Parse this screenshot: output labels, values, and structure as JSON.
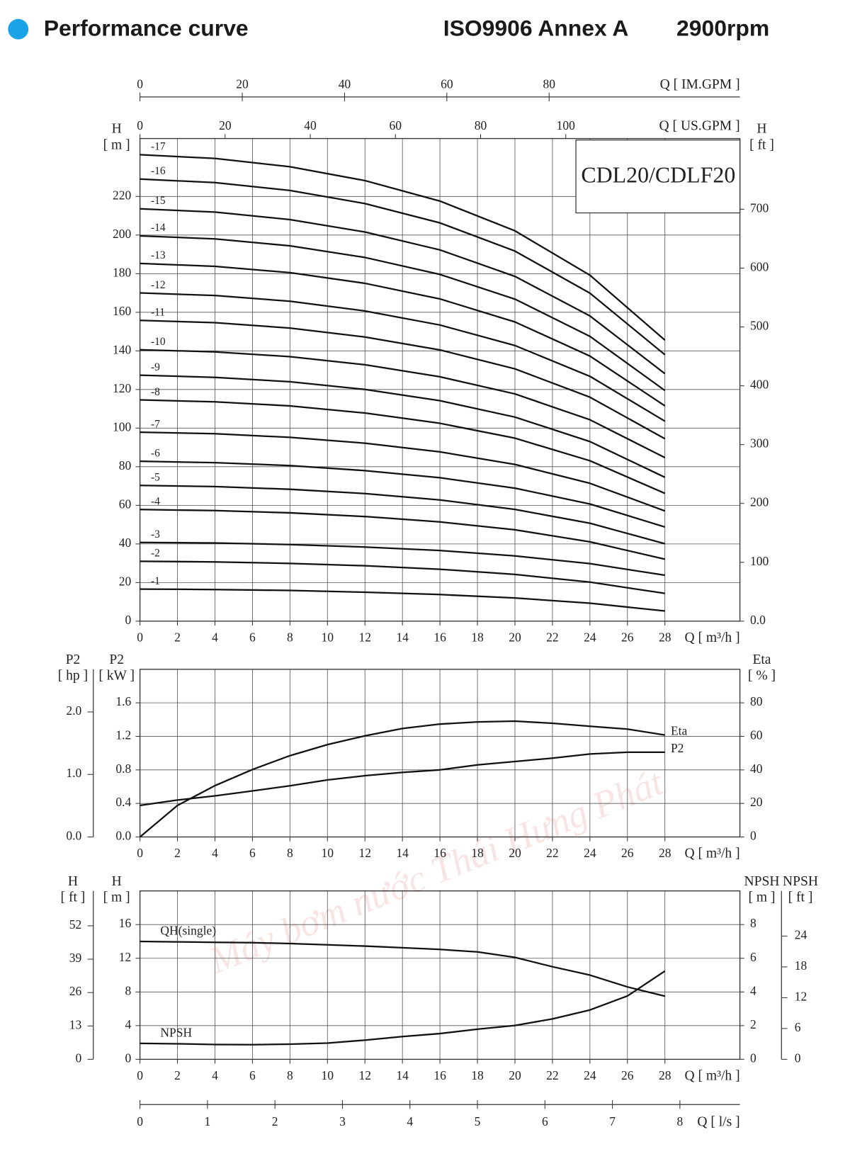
{
  "chart_data": [
    {
      "type": "line",
      "title": "Performance curve",
      "annotations": [
        "ISO9906 Annex A",
        "2900rpm",
        "CDL20/CDLF20"
      ],
      "watermark": "Máy bơm nước Thái Hưng Phát",
      "x": [
        0,
        4,
        8,
        12,
        16,
        20,
        24,
        28
      ],
      "xlim": [
        0,
        32
      ],
      "xticks": [
        0,
        2,
        4,
        6,
        8,
        10,
        12,
        14,
        16,
        18,
        20,
        22,
        24,
        26,
        28
      ],
      "xlabel": "Q [ m³/h ]",
      "x2label": "Q [ US.GPM ]",
      "x2lim": [
        0,
        140.9
      ],
      "x2ticks": [
        0,
        20,
        40,
        60,
        80,
        100
      ],
      "x3label": "Q [ IM.GPM ]",
      "x3lim": [
        0,
        117.3
      ],
      "x3ticks": [
        0,
        20,
        40,
        60,
        80
      ],
      "ylabel": "H",
      "yunit": "[ m ]",
      "ylim": [
        0,
        250
      ],
      "yticks": [
        0,
        20,
        40,
        60,
        80,
        100,
        120,
        140,
        160,
        180,
        200,
        220
      ],
      "y2label": "H",
      "y2unit": "[ ft ]",
      "y2lim": [
        0,
        820.2
      ],
      "y2ticks": [
        {
          "value": 0,
          "label": "0.0"
        },
        100,
        200,
        300,
        400,
        500,
        600,
        700
      ],
      "grid": true,
      "series": [
        {
          "name": "-1",
          "color": "#111111",
          "values": [
            16.6,
            16.4,
            15.9,
            15.0,
            13.8,
            12.0,
            9.3,
            5.3
          ]
        },
        {
          "name": "-2",
          "color": "#111111",
          "values": [
            31,
            30.7,
            29.9,
            28.7,
            26.9,
            24.2,
            20.2,
            14.4
          ]
        },
        {
          "name": "-3",
          "color": "#111111",
          "values": [
            40.8,
            40.5,
            39.7,
            38.4,
            36.6,
            33.8,
            29.8,
            23.8
          ]
        },
        {
          "name": "-4",
          "color": "#111111",
          "values": [
            57.8,
            57.3,
            56.1,
            54.2,
            51.4,
            47.3,
            41.1,
            32.1
          ]
        },
        {
          "name": "-5",
          "color": "#111111",
          "values": [
            70.3,
            69.7,
            68.3,
            66.1,
            62.8,
            57.9,
            50.7,
            40.1
          ]
        },
        {
          "name": "-6",
          "color": "#111111",
          "values": [
            82.8,
            82.1,
            80.6,
            78.0,
            74.3,
            68.9,
            60.7,
            48.8
          ]
        },
        {
          "name": "-7",
          "color": "#111111",
          "values": [
            97.9,
            97.1,
            95.2,
            92.2,
            87.7,
            81.2,
            71.4,
            57.1
          ]
        },
        {
          "name": "-8",
          "color": "#111111",
          "values": [
            114.6,
            113.6,
            111.5,
            107.8,
            102.5,
            94.8,
            83.1,
            66.2
          ]
        },
        {
          "name": "-9",
          "color": "#111111",
          "values": [
            127.4,
            126.3,
            124.0,
            120.0,
            114.2,
            105.7,
            93.0,
            74.5
          ]
        },
        {
          "name": "-10",
          "color": "#111111",
          "values": [
            140.6,
            139.5,
            137.0,
            132.8,
            126.6,
            117.7,
            104.3,
            84.7
          ]
        },
        {
          "name": "-11",
          "color": "#111111",
          "values": [
            155.8,
            154.6,
            151.8,
            147.2,
            140.5,
            130.7,
            116.0,
            94.5
          ]
        },
        {
          "name": "-12",
          "color": "#111111",
          "values": [
            170,
            168.7,
            165.7,
            160.7,
            153.4,
            142.8,
            126.8,
            103.6
          ]
        },
        {
          "name": "-13",
          "color": "#111111",
          "values": [
            185.3,
            183.8,
            180.5,
            175.0,
            166.9,
            155.0,
            137.3,
            111.5
          ]
        },
        {
          "name": "-14",
          "color": "#111111",
          "values": [
            199.6,
            198.0,
            194.4,
            188.4,
            179.6,
            166.8,
            147.5,
            119.5
          ]
        },
        {
          "name": "-15",
          "color": "#111111",
          "values": [
            213.6,
            211.9,
            208.0,
            201.6,
            192.3,
            178.6,
            158.1,
            128.2
          ]
        },
        {
          "name": "-16",
          "color": "#111111",
          "values": [
            229,
            227.2,
            223.1,
            216.3,
            206.3,
            191.7,
            169.9,
            138
          ]
        },
        {
          "name": "-17",
          "color": "#111111",
          "values": [
            241.6,
            239.7,
            235.4,
            228.2,
            217.6,
            202.2,
            179.2,
            145.6
          ]
        }
      ]
    },
    {
      "type": "line",
      "x": [
        0,
        2,
        4,
        6,
        8,
        10,
        12,
        14,
        16,
        18,
        20,
        22,
        24,
        26,
        28
      ],
      "xlim": [
        0,
        32
      ],
      "xticks": [
        0,
        2,
        4,
        6,
        8,
        10,
        12,
        14,
        16,
        18,
        20,
        22,
        24,
        26,
        28
      ],
      "xlabel": "Q [ m³/h ]",
      "ylabel": "P2",
      "yunit": "[ kW ]",
      "ylim": [
        0,
        2.0
      ],
      "yticks": [
        {
          "value": 0,
          "label": "0.0"
        },
        0.4,
        0.8,
        1.2,
        1.6
      ],
      "y3label": "P2",
      "y3unit": "[ hp ]",
      "y3lim": [
        0,
        2.682
      ],
      "y3ticks": [
        {
          "value": 0,
          "label": "0.0"
        },
        {
          "value": 1,
          "label": "1.0"
        },
        {
          "value": 2,
          "label": "2.0"
        }
      ],
      "y2label": "Eta",
      "y2unit": "[ % ]",
      "y2lim": [
        0,
        100
      ],
      "y2ticks": [
        0,
        20,
        40,
        60,
        80
      ],
      "grid": true,
      "series": [
        {
          "name": "P2",
          "color": "#111111",
          "axis": "y",
          "values": [
            0.376,
            0.44,
            0.49,
            0.55,
            0.61,
            0.68,
            0.73,
            0.77,
            0.8,
            0.86,
            0.9,
            0.94,
            0.99,
            1.01,
            1.01
          ]
        },
        {
          "name": "Eta",
          "color": "#111111",
          "axis": "y2",
          "values": [
            0,
            18.8,
            30.6,
            40.2,
            48.5,
            55.1,
            60.3,
            64.7,
            67.3,
            68.6,
            69.1,
            67.8,
            66.0,
            64.3,
            60.8
          ]
        }
      ]
    },
    {
      "type": "line",
      "x": [
        0,
        2,
        4,
        6,
        8,
        10,
        12,
        14,
        16,
        18,
        20,
        22,
        24,
        26,
        28
      ],
      "xlim": [
        0,
        32
      ],
      "xticks": [
        0,
        2,
        4,
        6,
        8,
        10,
        12,
        14,
        16,
        18,
        20,
        22,
        24,
        26,
        28
      ],
      "xlabel": "Q [ m³/h ]",
      "x2label": "Q [ l/s ]",
      "x2lim": [
        0,
        8.889
      ],
      "x2ticks": [
        0,
        1,
        2,
        3,
        4,
        5,
        6,
        7,
        8
      ],
      "ylabel": "H",
      "yunit": "[ m ]",
      "ylim": [
        0,
        20
      ],
      "yticks": [
        0,
        4,
        8,
        12,
        16
      ],
      "y3label": "H",
      "y3unit": "[ ft ]",
      "y3lim": [
        0,
        65.6
      ],
      "y3ticks": [
        0,
        13,
        26,
        39,
        52
      ],
      "y2label": "NPSH",
      "y2unit": "[ m ]",
      "y2lim": [
        0,
        10
      ],
      "y2ticks": [
        0,
        2,
        4,
        6,
        8
      ],
      "y4label": "NPSH",
      "y4unit": "[ ft ]",
      "y4lim": [
        0,
        32.8
      ],
      "y4ticks": [
        0,
        6,
        12,
        18,
        24
      ],
      "grid": true,
      "series": [
        {
          "name": "QH(single)",
          "color": "#111111",
          "axis": "y",
          "values": [
            14.0,
            13.95,
            13.9,
            13.85,
            13.75,
            13.6,
            13.45,
            13.25,
            13.05,
            12.75,
            12.1,
            11.0,
            10.0,
            8.6,
            7.5
          ]
        },
        {
          "name": "NPSH",
          "color": "#111111",
          "axis": "y2",
          "values": [
            0.95,
            0.92,
            0.88,
            0.87,
            0.9,
            0.96,
            1.14,
            1.35,
            1.53,
            1.79,
            2.01,
            2.4,
            2.93,
            3.76,
            5.24
          ]
        }
      ]
    }
  ]
}
